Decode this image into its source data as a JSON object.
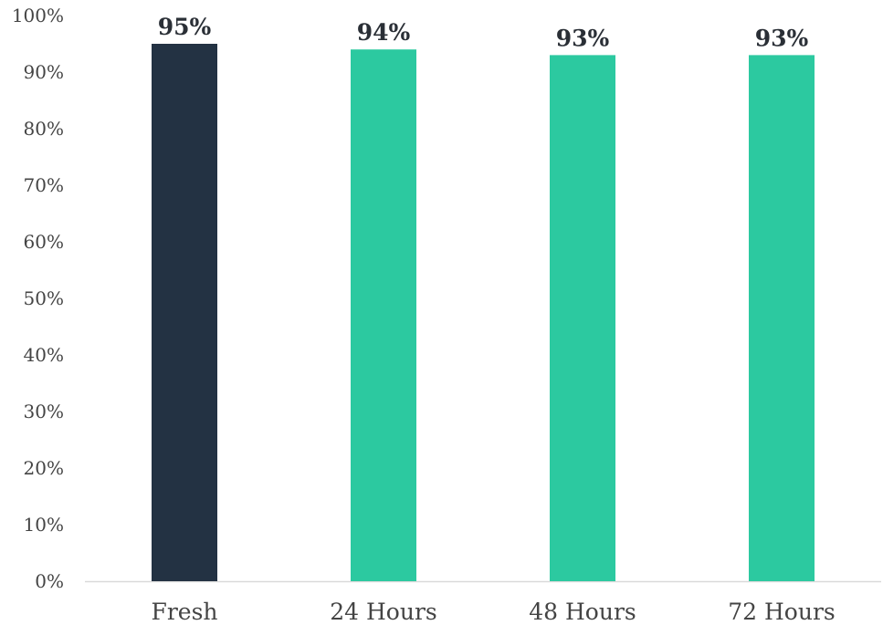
{
  "chart_data": {
    "type": "bar",
    "categories": [
      "Fresh",
      "24 Hours",
      "48 Hours",
      "72 Hours"
    ],
    "values": [
      95,
      94,
      93,
      93
    ],
    "data_labels": [
      "95%",
      "94%",
      "93%",
      "93%"
    ],
    "bar_colors": [
      "#233243",
      "#2cc9a0",
      "#2cc9a0",
      "#2cc9a0"
    ],
    "ylim": [
      0,
      100
    ],
    "y_ticks": [
      0,
      10,
      20,
      30,
      40,
      50,
      60,
      70,
      80,
      90,
      100
    ],
    "y_tick_labels": [
      "0%",
      "10%",
      "20%",
      "30%",
      "40%",
      "50%",
      "60%",
      "70%",
      "80%",
      "90%",
      "100%"
    ],
    "grid": false,
    "legend": "none",
    "title": "",
    "xlabel": "",
    "ylabel": ""
  }
}
